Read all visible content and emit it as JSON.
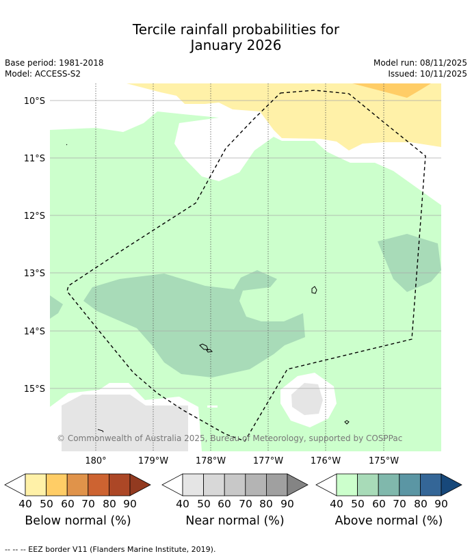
{
  "title_line1": "Tercile rainfall probabilities for",
  "title_line2": "January 2026",
  "base_period": "Base period: 1981-2018",
  "model": "Model: ACCESS-S2",
  "model_run": "Model run: 08/11/2025",
  "issued": "Issued: 10/11/2025",
  "copyright": "© Commonwealth of Australia 2025, Bureau of Meteorology, supported by COSPPac",
  "lat_labels": [
    "10°S",
    "11°S",
    "12°S",
    "13°S",
    "14°S",
    "15°S"
  ],
  "lon_labels": [
    "180°",
    "179°W",
    "178°W",
    "177°W",
    "176°W",
    "175°W"
  ],
  "colorbars": [
    {
      "label": "Below normal (%)",
      "ticks": [
        "40",
        "50",
        "60",
        "70",
        "80",
        "90"
      ],
      "colors": [
        "#ffffff",
        "#fff1a8",
        "#ffcd66",
        "#e0934a",
        "#cd6331",
        "#ac4726",
        "#923a20"
      ]
    },
    {
      "label": "Near normal (%)",
      "ticks": [
        "40",
        "50",
        "60",
        "70",
        "80",
        "90"
      ],
      "colors": [
        "#ffffff",
        "#e5e5e5",
        "#d8d8d8",
        "#c8c8c8",
        "#b4b4b4",
        "#a0a0a0",
        "#848484"
      ]
    },
    {
      "label": "Above normal (%)",
      "ticks": [
        "40",
        "50",
        "60",
        "70",
        "80",
        "90"
      ],
      "colors": [
        "#ffffff",
        "#ccffcc",
        "#a8dbb8",
        "#80b8ac",
        "#5b96a4",
        "#346697",
        "#17487a"
      ]
    }
  ],
  "footnote": "--  --  -- EEZ border V11 (Flanders Marine Institute, 2019)."
}
